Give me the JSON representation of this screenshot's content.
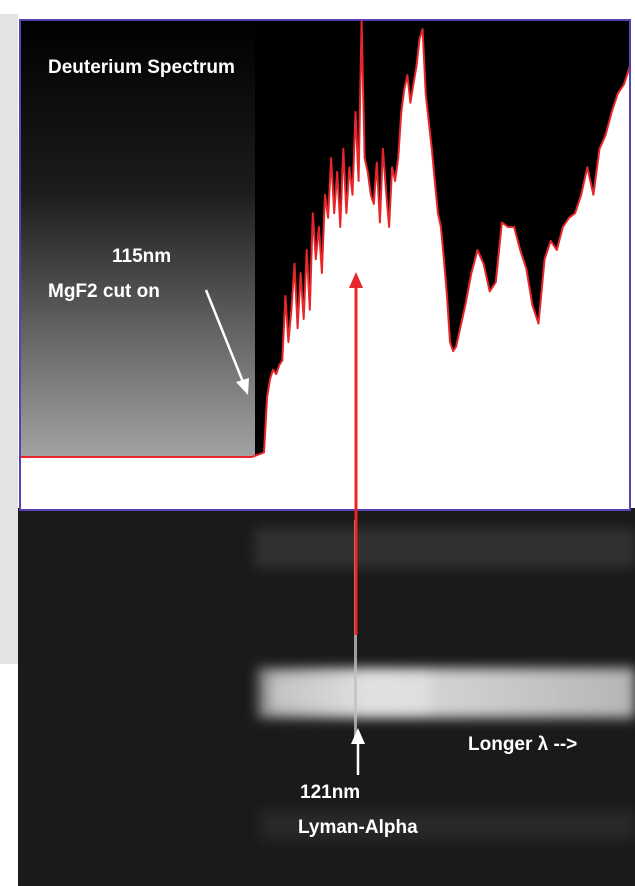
{
  "chart_data": {
    "type": "area",
    "title": "Deuterium Spectrum",
    "xlabel": "",
    "ylabel": "",
    "colors": {
      "fill": "#ffffff",
      "line": "#e8262a",
      "frame": "#5a3fb5",
      "background": "#000000"
    },
    "series": [
      {
        "name": "",
        "x": [
          0,
          0.05,
          0.1,
          0.15,
          0.2,
          0.25,
          0.3,
          0.35,
          0.38,
          0.4,
          0.405,
          0.41,
          0.415,
          0.42,
          0.425,
          0.43,
          0.435,
          0.44,
          0.445,
          0.45,
          0.455,
          0.46,
          0.465,
          0.47,
          0.475,
          0.48,
          0.485,
          0.49,
          0.495,
          0.5,
          0.505,
          0.51,
          0.515,
          0.52,
          0.525,
          0.53,
          0.535,
          0.54,
          0.545,
          0.55,
          0.555,
          0.56,
          0.565,
          0.57,
          0.575,
          0.58,
          0.585,
          0.59,
          0.595,
          0.6,
          0.605,
          0.61,
          0.615,
          0.62,
          0.625,
          0.63,
          0.635,
          0.64,
          0.645,
          0.65,
          0.655,
          0.66,
          0.665,
          0.67,
          0.675,
          0.68,
          0.685,
          0.69,
          0.695,
          0.7,
          0.705,
          0.71,
          0.715,
          0.72,
          0.73,
          0.74,
          0.75,
          0.76,
          0.77,
          0.78,
          0.79,
          0.8,
          0.81,
          0.82,
          0.83,
          0.84,
          0.85,
          0.86,
          0.87,
          0.88,
          0.89,
          0.9,
          0.91,
          0.92,
          0.93,
          0.94,
          0.95,
          0.96,
          0.97,
          0.98,
          0.99,
          1.0
        ],
        "values": [
          0.05,
          0.05,
          0.05,
          0.05,
          0.05,
          0.05,
          0.05,
          0.05,
          0.05,
          0.06,
          0.18,
          0.22,
          0.24,
          0.23,
          0.25,
          0.26,
          0.4,
          0.3,
          0.37,
          0.47,
          0.33,
          0.45,
          0.35,
          0.5,
          0.37,
          0.58,
          0.48,
          0.55,
          0.45,
          0.62,
          0.57,
          0.7,
          0.58,
          0.67,
          0.55,
          0.72,
          0.58,
          0.68,
          0.62,
          0.8,
          0.65,
          1.0,
          0.7,
          0.67,
          0.62,
          0.6,
          0.69,
          0.56,
          0.72,
          0.63,
          0.55,
          0.68,
          0.65,
          0.7,
          0.8,
          0.85,
          0.88,
          0.82,
          0.86,
          0.9,
          0.96,
          0.98,
          0.84,
          0.78,
          0.72,
          0.65,
          0.58,
          0.55,
          0.48,
          0.4,
          0.3,
          0.28,
          0.29,
          0.32,
          0.38,
          0.45,
          0.5,
          0.47,
          0.41,
          0.43,
          0.56,
          0.55,
          0.55,
          0.5,
          0.46,
          0.38,
          0.34,
          0.48,
          0.52,
          0.5,
          0.55,
          0.57,
          0.58,
          0.62,
          0.68,
          0.62,
          0.72,
          0.75,
          0.8,
          0.84,
          0.86,
          0.9
        ]
      }
    ],
    "annotations": [
      {
        "line1": "115nm",
        "line2": "MgF2 cut on"
      },
      {
        "line1": "121nm",
        "line2": "Lyman-Alpha"
      },
      {
        "line1": "Longer λ -->"
      }
    ]
  }
}
